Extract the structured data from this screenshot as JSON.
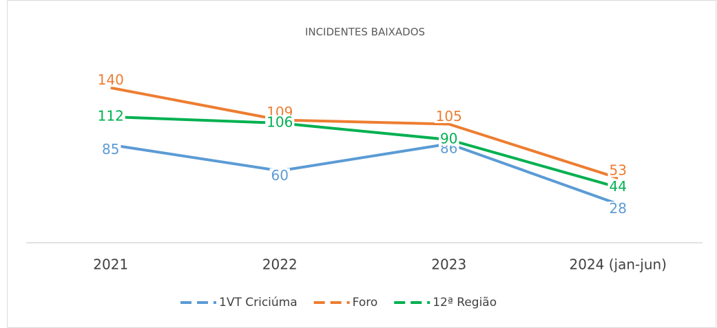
{
  "chart_data": {
    "type": "line",
    "title": "INCIDENTES BAIXADOS",
    "categories": [
      "2021",
      "2022",
      "2023",
      "2024 (jan-jun)"
    ],
    "series": [
      {
        "name": "1VT Criciúma",
        "color": "#5b9bd5",
        "values": [
          85,
          60,
          86,
          28
        ]
      },
      {
        "name": "Foro",
        "color": "#ed7d31",
        "values": [
          140,
          109,
          105,
          53
        ]
      },
      {
        "name": "12ª Região",
        "color": "#00b050",
        "values": [
          112,
          106,
          90,
          44
        ]
      }
    ],
    "ylim": [
      -10,
      160
    ],
    "legend": "bottom"
  }
}
